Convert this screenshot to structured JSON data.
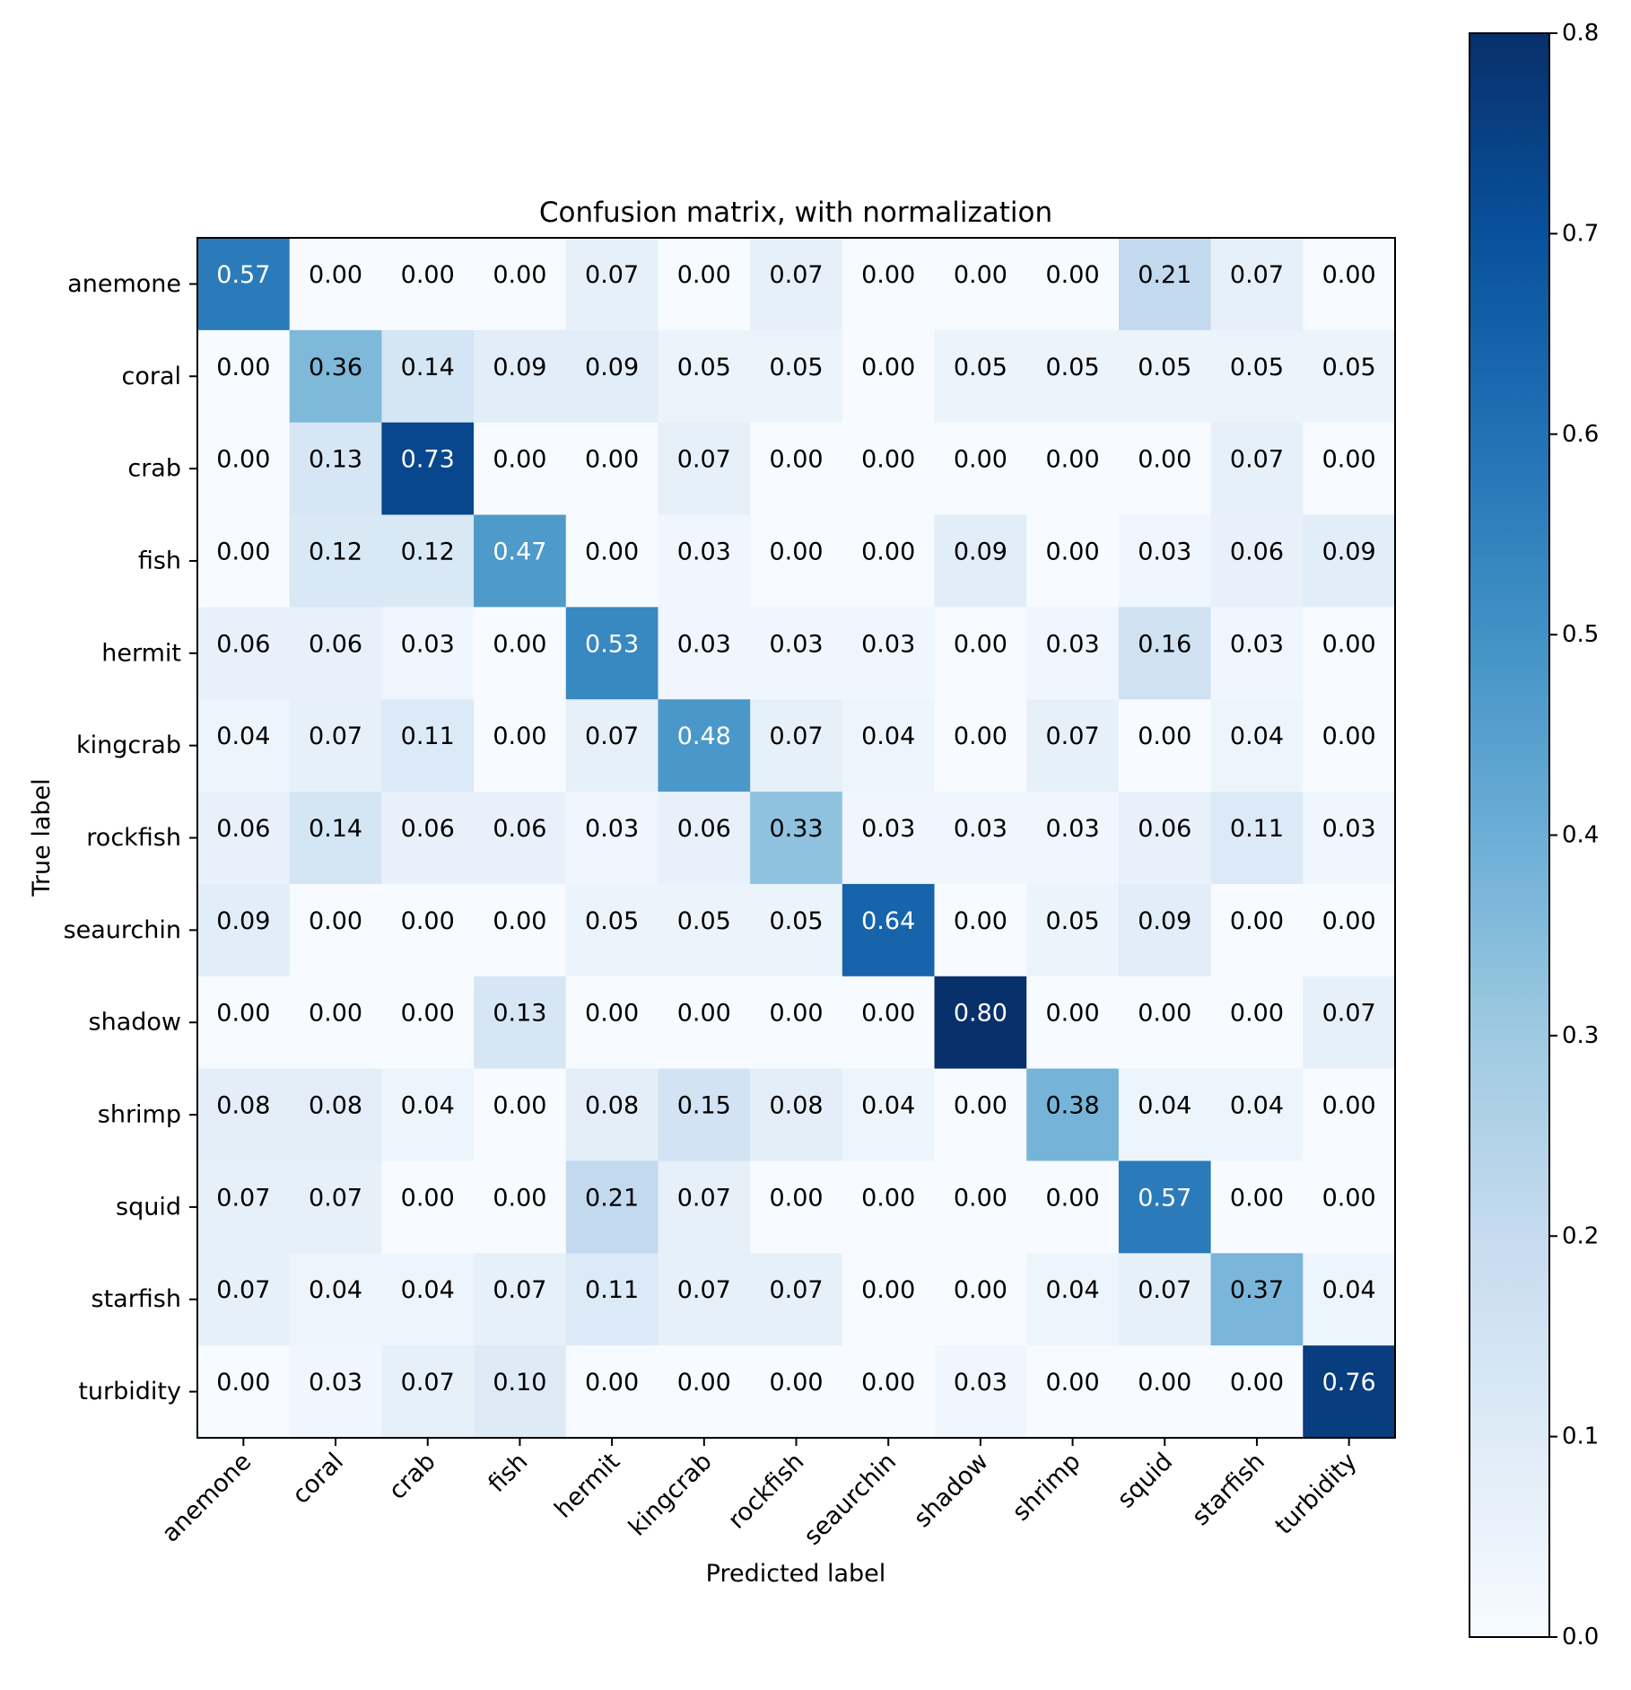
{
  "chart_data": {
    "type": "heatmap",
    "title": "Confusion matrix, with normalization",
    "xlabel": "Predicted label",
    "ylabel": "True label",
    "categories": [
      "anemone",
      "coral",
      "crab",
      "fish",
      "hermit",
      "kingcrab",
      "rockfish",
      "seaurchin",
      "shadow",
      "shrimp",
      "squid",
      "starfish",
      "turbidity"
    ],
    "values": [
      [
        0.57,
        0.0,
        0.0,
        0.0,
        0.07,
        0.0,
        0.07,
        0.0,
        0.0,
        0.0,
        0.21,
        0.07,
        0.0
      ],
      [
        0.0,
        0.36,
        0.14,
        0.09,
        0.09,
        0.05,
        0.05,
        0.0,
        0.05,
        0.05,
        0.05,
        0.05,
        0.05
      ],
      [
        0.0,
        0.13,
        0.73,
        0.0,
        0.0,
        0.07,
        0.0,
        0.0,
        0.0,
        0.0,
        0.0,
        0.07,
        0.0
      ],
      [
        0.0,
        0.12,
        0.12,
        0.47,
        0.0,
        0.03,
        0.0,
        0.0,
        0.09,
        0.0,
        0.03,
        0.06,
        0.09
      ],
      [
        0.06,
        0.06,
        0.03,
        0.0,
        0.53,
        0.03,
        0.03,
        0.03,
        0.0,
        0.03,
        0.16,
        0.03,
        0.0
      ],
      [
        0.04,
        0.07,
        0.11,
        0.0,
        0.07,
        0.48,
        0.07,
        0.04,
        0.0,
        0.07,
        0.0,
        0.04,
        0.0
      ],
      [
        0.06,
        0.14,
        0.06,
        0.06,
        0.03,
        0.06,
        0.33,
        0.03,
        0.03,
        0.03,
        0.06,
        0.11,
        0.03
      ],
      [
        0.09,
        0.0,
        0.0,
        0.0,
        0.05,
        0.05,
        0.05,
        0.64,
        0.0,
        0.05,
        0.09,
        0.0,
        0.0
      ],
      [
        0.0,
        0.0,
        0.0,
        0.13,
        0.0,
        0.0,
        0.0,
        0.0,
        0.8,
        0.0,
        0.0,
        0.0,
        0.07
      ],
      [
        0.08,
        0.08,
        0.04,
        0.0,
        0.08,
        0.15,
        0.08,
        0.04,
        0.0,
        0.38,
        0.04,
        0.04,
        0.0
      ],
      [
        0.07,
        0.07,
        0.0,
        0.0,
        0.21,
        0.07,
        0.0,
        0.0,
        0.0,
        0.0,
        0.57,
        0.0,
        0.0
      ],
      [
        0.07,
        0.04,
        0.04,
        0.07,
        0.11,
        0.07,
        0.07,
        0.0,
        0.0,
        0.04,
        0.07,
        0.37,
        0.04
      ],
      [
        0.0,
        0.03,
        0.07,
        0.1,
        0.0,
        0.0,
        0.0,
        0.0,
        0.03,
        0.0,
        0.0,
        0.0,
        0.76
      ]
    ],
    "value_format_decimals": 2,
    "colormap": "Blues",
    "colormap_stops": [
      "#f7fbff",
      "#deebf7",
      "#c6dbef",
      "#9ecae1",
      "#6baed6",
      "#4292c6",
      "#2171b5",
      "#08519c",
      "#08306b"
    ],
    "vmin": 0.0,
    "vmax": 0.8,
    "text_threshold": 0.4,
    "text_color_dark": "#000000",
    "text_color_light": "#ffffff",
    "colorbar": {
      "ticks": [
        0.0,
        0.1,
        0.2,
        0.3,
        0.4,
        0.5,
        0.6,
        0.7,
        0.8
      ],
      "tick_labels": [
        "0.0",
        "0.1",
        "0.2",
        "0.3",
        "0.4",
        "0.5",
        "0.6",
        "0.7",
        "0.8"
      ],
      "position": "right"
    }
  }
}
